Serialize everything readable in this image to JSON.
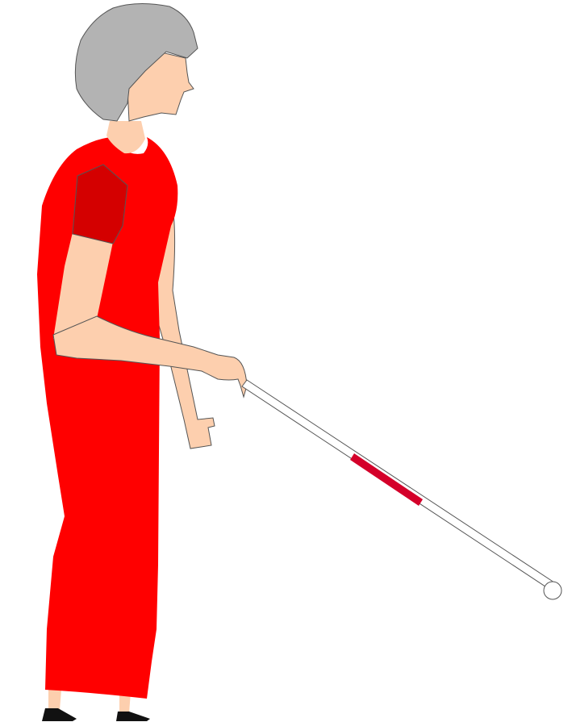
{
  "illustration": {
    "subject": "woman-with-white-cane",
    "colors": {
      "background": "#ffffff",
      "hair": "#b3b3b3",
      "skin": "#fdcfae",
      "dress": "#ff0000",
      "sleeve": "#d40000",
      "shoe": "#111111",
      "cane": "#ffffff",
      "cane_band": "#d4002a",
      "outline": "#555555"
    }
  }
}
